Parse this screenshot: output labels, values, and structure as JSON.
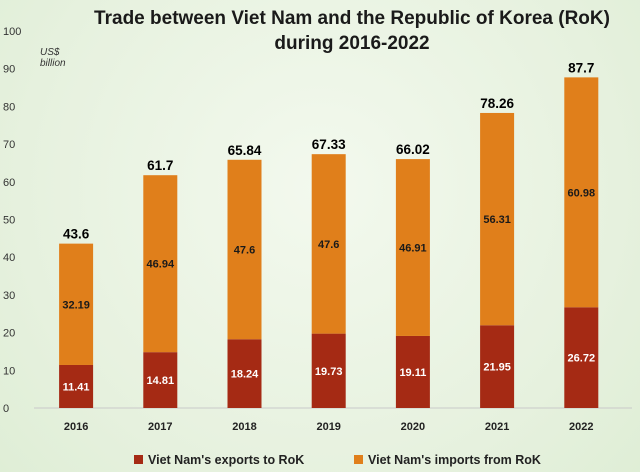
{
  "chart_data": {
    "type": "bar",
    "stacked": true,
    "title_line1": "Trade between Viet Nam and the Republic of Korea (RoK)",
    "title_line2": "during 2016-2022",
    "unit_line1": "US$",
    "unit_line2": "billion",
    "categories": [
      "2016",
      "2017",
      "2018",
      "2019",
      "2020",
      "2021",
      "2022"
    ],
    "series": [
      {
        "name": "Viet Nam's exports to RoK",
        "color": "#a52a14",
        "values": [
          11.41,
          14.81,
          18.24,
          19.73,
          19.11,
          21.95,
          26.72
        ],
        "labels": [
          "11.41",
          "14.81",
          "18.24",
          "19.73",
          "19.11",
          "21.95",
          "26.72"
        ]
      },
      {
        "name": "Viet Nam's imports from RoK",
        "color": "#e07f1b",
        "values": [
          32.19,
          46.94,
          47.6,
          47.6,
          46.91,
          56.31,
          60.98
        ],
        "labels": [
          "32.19",
          "46.94",
          "47.6",
          "47.6",
          "46.91",
          "56.31",
          "60.98"
        ]
      }
    ],
    "totals": [
      "43.6",
      "61.7",
      "65.84",
      "67.33",
      "66.02",
      "78.26",
      "87.7"
    ],
    "ylim": [
      0,
      100
    ],
    "yticks": [
      "0",
      "10",
      "20",
      "30",
      "40",
      "50",
      "60",
      "70",
      "80",
      "90",
      "100"
    ],
    "grid": false,
    "legend": "bottom"
  }
}
